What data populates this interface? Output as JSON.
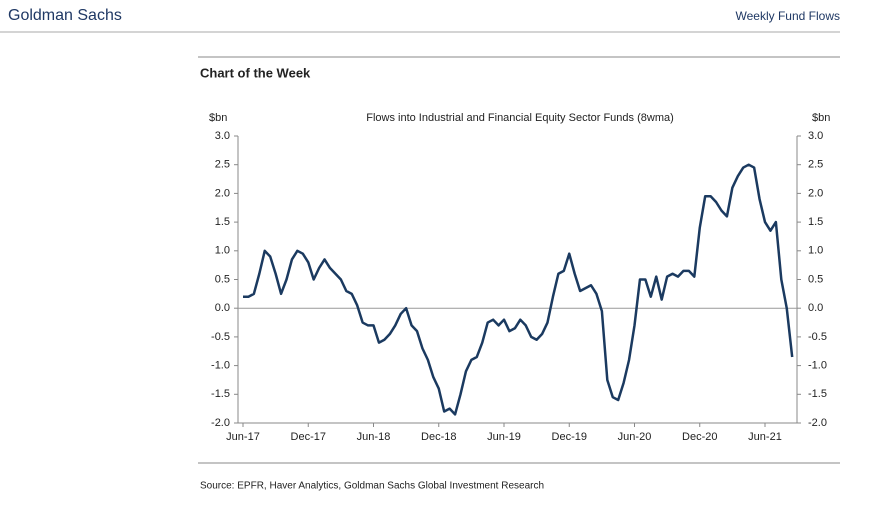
{
  "header": {
    "brand": "Goldman Sachs",
    "report": "Weekly Fund Flows",
    "section": "Chart of the Week"
  },
  "footer": {
    "source": "Source: EPFR, Haver Analytics, Goldman Sachs Global Investment Research"
  },
  "chart_data": {
    "type": "line",
    "title": "Flows into Industrial and Financial Equity Sector Funds (8wma)",
    "ylabel": "$bn",
    "y2label": "$bn",
    "categories": [
      "Jun-17",
      null,
      null,
      null,
      null,
      null,
      null,
      null,
      null,
      null,
      null,
      null,
      "Dec-17",
      null,
      null,
      null,
      null,
      null,
      null,
      null,
      null,
      null,
      null,
      null,
      "Jun-18",
      null,
      null,
      null,
      null,
      null,
      null,
      null,
      null,
      null,
      null,
      null,
      "Dec-18",
      null,
      null,
      null,
      null,
      null,
      null,
      null,
      null,
      null,
      null,
      null,
      "Jun-19",
      null,
      null,
      null,
      null,
      null,
      null,
      null,
      null,
      null,
      null,
      null,
      "Dec-19",
      null,
      null,
      null,
      null,
      null,
      null,
      null,
      null,
      null,
      null,
      null,
      "Jun-20",
      null,
      null,
      null,
      null,
      null,
      null,
      null,
      null,
      null,
      null,
      null,
      "Dec-20",
      null,
      null,
      null,
      null,
      null,
      null,
      null,
      null,
      null,
      null,
      null,
      "Jun-21",
      null,
      null,
      null,
      null,
      null
    ],
    "series": [
      {
        "name": "Flows",
        "color": "#1b3a60",
        "values": [
          0.2,
          0.2,
          0.25,
          0.6,
          1.0,
          0.9,
          0.6,
          0.25,
          0.5,
          0.85,
          1.0,
          0.95,
          0.8,
          0.5,
          0.7,
          0.85,
          0.7,
          0.6,
          0.5,
          0.3,
          0.25,
          0.05,
          -0.25,
          -0.3,
          -0.3,
          -0.6,
          -0.55,
          -0.45,
          -0.3,
          -0.1,
          0.0,
          -0.3,
          -0.4,
          -0.7,
          -0.9,
          -1.2,
          -1.4,
          -1.8,
          -1.75,
          -1.85,
          -1.5,
          -1.1,
          -0.9,
          -0.85,
          -0.6,
          -0.25,
          -0.2,
          -0.3,
          -0.2,
          -0.4,
          -0.35,
          -0.2,
          -0.3,
          -0.5,
          -0.55,
          -0.45,
          -0.25,
          0.2,
          0.6,
          0.65,
          0.95,
          0.6,
          0.3,
          0.35,
          0.4,
          0.25,
          -0.05,
          -1.25,
          -1.55,
          -1.6,
          -1.3,
          -0.9,
          -0.3,
          0.5,
          0.5,
          0.2,
          0.55,
          0.15,
          0.55,
          0.6,
          0.55,
          0.65,
          0.65,
          0.55,
          1.4,
          1.95,
          1.95,
          1.85,
          1.7,
          1.6,
          2.1,
          2.3,
          2.45,
          2.5,
          2.45,
          1.9,
          1.5,
          1.35,
          1.5,
          0.5,
          0.0,
          -0.85
        ]
      }
    ],
    "ylim": [
      -2,
      3
    ],
    "yticks": [
      {
        "value": -2,
        "label": "-2.0"
      },
      {
        "value": -1.5,
        "label": "-1.5"
      },
      {
        "value": -1,
        "label": "-1.0"
      },
      {
        "value": -0.5,
        "label": "-0.5"
      },
      {
        "value": 0,
        "label": "0.0"
      },
      {
        "value": 0.5,
        "label": "0.5"
      },
      {
        "value": 1,
        "label": "1.0"
      },
      {
        "value": 1.5,
        "label": "1.5"
      },
      {
        "value": 2,
        "label": "2.0"
      },
      {
        "value": 2.5,
        "label": "2.5"
      },
      {
        "value": 3,
        "label": "3.0"
      }
    ],
    "y2lim": [
      -2,
      3
    ],
    "y2ticks": [
      {
        "value": -2,
        "label": "-2.0"
      },
      {
        "value": -1.5,
        "label": "-1.5"
      },
      {
        "value": -1,
        "label": "-1.0"
      },
      {
        "value": -0.5,
        "label": "-0.5"
      },
      {
        "value": 0,
        "label": "0.0"
      },
      {
        "value": 0.5,
        "label": "0.5"
      },
      {
        "value": 1,
        "label": "1.0"
      },
      {
        "value": 1.5,
        "label": "1.5"
      },
      {
        "value": 2,
        "label": "2.0"
      },
      {
        "value": 2.5,
        "label": "2.5"
      },
      {
        "value": 3,
        "label": "3.0"
      }
    ]
  }
}
